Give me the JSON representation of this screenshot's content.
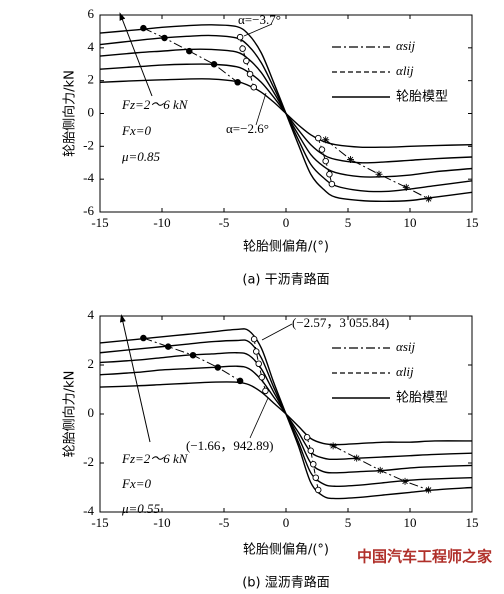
{
  "chart_data": [
    {
      "type": "line",
      "caption": "(a) 干沥青路面",
      "xlabel": "轮胎侧偏角/(°)",
      "ylabel": "轮胎侧向力/kN",
      "xlim": [
        -15,
        15
      ],
      "xticks": [
        -15,
        -10,
        -5,
        0,
        5,
        10,
        15
      ],
      "ylim": [
        -6,
        6
      ],
      "yticks": [
        -6,
        -4,
        -2,
        0,
        2,
        4,
        6
      ],
      "x": [
        -15,
        -12,
        -10,
        -8,
        -6,
        -4,
        -3,
        -2,
        -1,
        0,
        1,
        2,
        3,
        4,
        6,
        8,
        10,
        12,
        15
      ],
      "curve_name": "轮胎模型",
      "curve_color": "#000000",
      "curves": [
        [
          1.9,
          2.0,
          2.05,
          2.1,
          2.1,
          1.95,
          1.7,
          1.3,
          0.7,
          0,
          -0.7,
          -1.3,
          -1.7,
          -1.9,
          -2.05,
          -2.05,
          -2.0,
          -1.95,
          -1.9
        ],
        [
          2.7,
          2.85,
          2.95,
          3.0,
          3.0,
          2.85,
          2.5,
          1.9,
          1.0,
          0,
          -1.0,
          -1.9,
          -2.5,
          -2.8,
          -3.0,
          -2.95,
          -2.85,
          -2.75,
          -2.65
        ],
        [
          3.5,
          3.7,
          3.8,
          3.9,
          3.9,
          3.75,
          3.3,
          2.5,
          1.3,
          0,
          -1.3,
          -2.5,
          -3.2,
          -3.6,
          -3.85,
          -3.85,
          -3.75,
          -3.55,
          -3.35
        ],
        [
          4.2,
          4.45,
          4.6,
          4.7,
          4.75,
          4.6,
          4.1,
          3.1,
          1.6,
          0,
          -1.6,
          -3.1,
          -3.9,
          -4.4,
          -4.7,
          -4.75,
          -4.6,
          -4.4,
          -4.1
        ],
        [
          4.9,
          5.1,
          5.25,
          5.35,
          5.4,
          5.3,
          4.8,
          3.7,
          1.9,
          0,
          -1.9,
          -3.7,
          -4.6,
          -5.1,
          -5.3,
          -5.35,
          -5.3,
          -5.1,
          -4.8
        ]
      ],
      "series": [
        {
          "name": "αsij",
          "color": "#000000",
          "dash": "dash-dot",
          "markers": [
            "filled-circle",
            "asterisk"
          ],
          "x": [
            -11.5,
            -9.8,
            -7.8,
            -5.8,
            -3.9,
            null,
            3.2,
            5.2,
            7.5,
            9.7,
            11.5
          ],
          "values": [
            5.2,
            4.6,
            3.8,
            3.0,
            1.9,
            null,
            -1.6,
            -2.8,
            -3.7,
            -4.5,
            -5.2
          ]
        },
        {
          "name": "αlij",
          "color": "#000000",
          "dash": "dashed",
          "markers": [
            "open-circle",
            "open-circle"
          ],
          "x": [
            -3.7,
            -3.5,
            -3.2,
            -2.9,
            -2.6,
            null,
            2.6,
            2.9,
            3.2,
            3.5,
            3.7
          ],
          "values": [
            4.65,
            3.95,
            3.2,
            2.4,
            1.6,
            null,
            -1.5,
            -2.2,
            -2.9,
            -3.7,
            -4.3
          ]
        }
      ],
      "annotations": [
        "α=−3.7°",
        "α=−2.6°",
        "Fz=2～6 kN",
        "Fx=0",
        "μ=0.85"
      ]
    },
    {
      "type": "line",
      "caption": "(b) 湿沥青路面",
      "xlabel": "轮胎侧偏角/(°)",
      "ylabel": "轮胎侧向力/kN",
      "xlim": [
        -15,
        15
      ],
      "xticks": [
        -15,
        -10,
        -5,
        0,
        5,
        10,
        15
      ],
      "ylim": [
        -4,
        4
      ],
      "yticks": [
        -4,
        -2,
        0,
        2,
        4
      ],
      "x": [
        -15,
        -12,
        -10,
        -8,
        -6,
        -4,
        -3,
        -2,
        -1,
        0,
        1,
        2,
        3,
        4,
        6,
        8,
        10,
        12,
        15
      ],
      "curve_name": "轮胎模型",
      "curve_color": "#000000",
      "curves": [
        [
          1.1,
          1.15,
          1.2,
          1.25,
          1.3,
          1.3,
          1.2,
          0.9,
          0.45,
          0,
          -0.5,
          -1.0,
          -1.2,
          -1.25,
          -1.2,
          -1.15,
          -1.15,
          -1.1,
          -1.1
        ],
        [
          1.6,
          1.7,
          1.8,
          1.85,
          1.9,
          1.95,
          1.85,
          1.4,
          0.7,
          0,
          -0.75,
          -1.55,
          -1.8,
          -1.85,
          -1.8,
          -1.75,
          -1.7,
          -1.65,
          -1.6
        ],
        [
          2.1,
          2.2,
          2.3,
          2.4,
          2.45,
          2.5,
          2.4,
          1.85,
          0.9,
          0,
          -0.95,
          -2.0,
          -2.35,
          -2.4,
          -2.35,
          -2.3,
          -2.2,
          -2.15,
          -2.1
        ],
        [
          2.5,
          2.65,
          2.75,
          2.85,
          2.95,
          3.0,
          2.95,
          2.3,
          1.1,
          0,
          -1.15,
          -2.4,
          -2.85,
          -2.95,
          -2.9,
          -2.8,
          -2.7,
          -2.65,
          -2.6
        ],
        [
          2.9,
          3.05,
          3.15,
          3.25,
          3.35,
          3.45,
          3.4,
          2.7,
          1.3,
          0,
          -1.3,
          -2.8,
          -3.35,
          -3.45,
          -3.4,
          -3.3,
          -3.2,
          -3.1,
          -3.0
        ]
      ],
      "series": [
        {
          "name": "αsij",
          "color": "#000000",
          "dash": "dash-dot",
          "markers": [
            "filled-circle",
            "asterisk"
          ],
          "x": [
            -11.5,
            -9.5,
            -7.5,
            -5.5,
            -3.7,
            null,
            3.8,
            5.7,
            7.6,
            9.6,
            11.5
          ],
          "values": [
            3.1,
            2.75,
            2.4,
            1.9,
            1.35,
            null,
            -1.3,
            -1.8,
            -2.3,
            -2.75,
            -3.1
          ]
        },
        {
          "name": "αlij",
          "color": "#000000",
          "dash": "dashed",
          "markers": [
            "open-circle",
            "open-circle"
          ],
          "x": [
            -2.57,
            -2.4,
            -2.2,
            -1.95,
            -1.66,
            null,
            1.7,
            2.0,
            2.2,
            2.4,
            2.6
          ],
          "values": [
            3.05584,
            2.55,
            2.05,
            1.5,
            0.94289,
            null,
            -0.95,
            -1.5,
            -2.05,
            -2.6,
            -3.1
          ]
        }
      ],
      "annotations": [
        "(−2.57，3 055.84)",
        "(−1.66，942.89)",
        "Fz=2～6 kN",
        "Fx=0",
        "μ=0.55"
      ]
    }
  ],
  "watermark": "中国汽车工程师之家"
}
